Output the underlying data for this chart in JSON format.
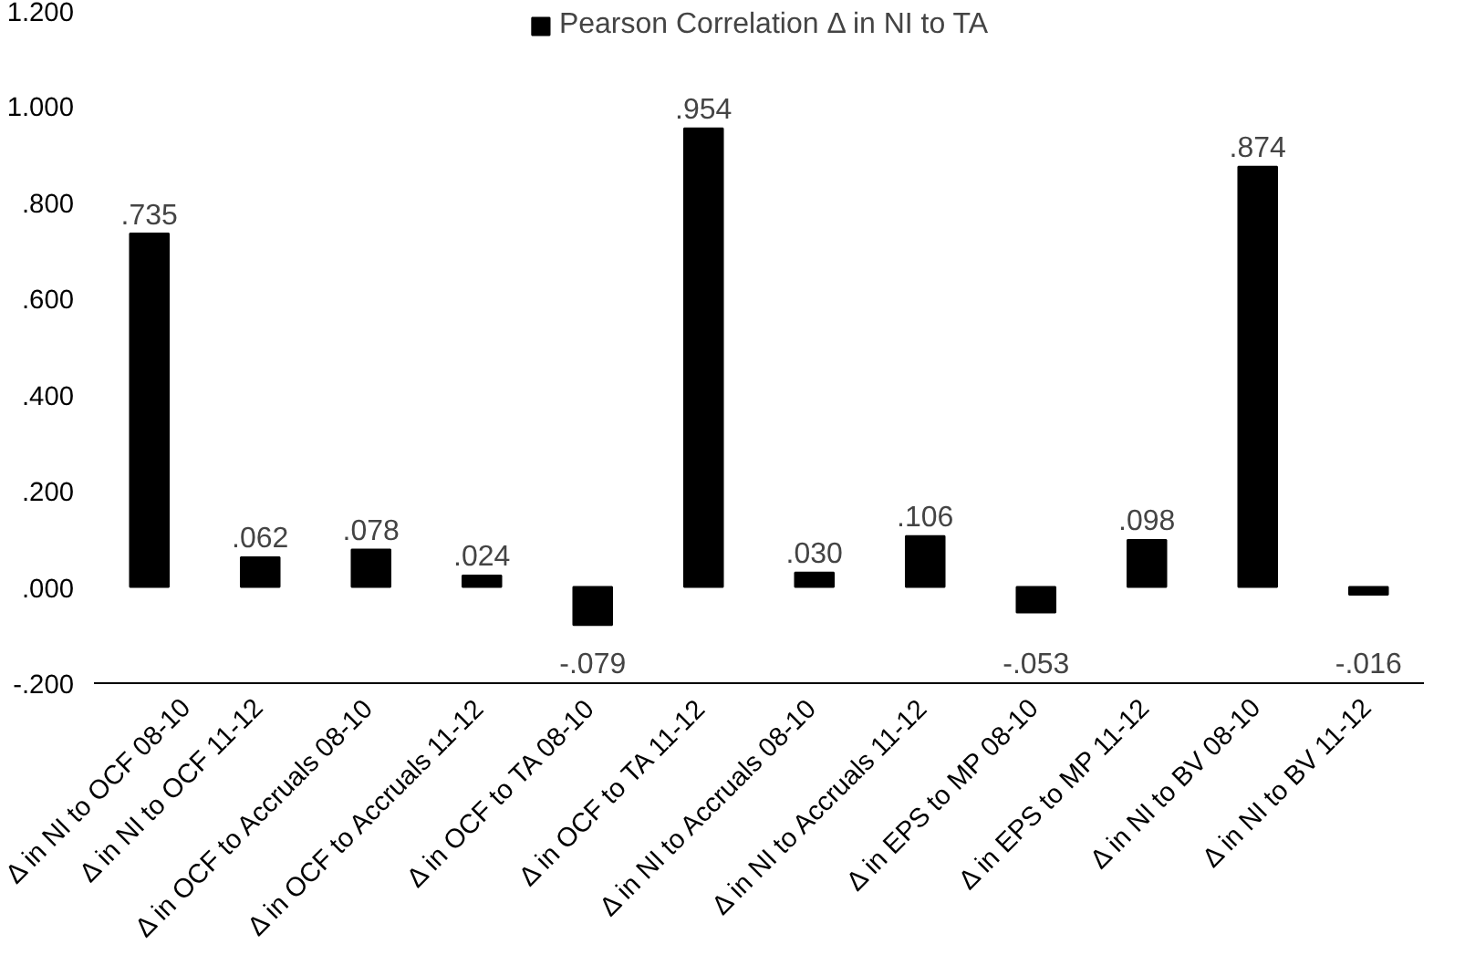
{
  "chart_data": {
    "type": "bar",
    "categories": [
      "Δ in NI to OCF 08-10",
      "Δ in NI to OCF 11-12",
      "Δ in OCF to Accruals 08-10",
      "Δ in OCF to Accruals 11-12",
      "Δ in OCF to TA 08-10",
      "Δ in OCF to TA 11-12",
      "Δ in NI to Accruals 08-10",
      "Δ in NI to Accruals 11-12",
      "Δ in EPS to MP 08-10",
      "Δ in EPS to MP 11-12",
      "Δ in NI to BV 08-10",
      "Δ in NI to BV 11-12"
    ],
    "series": [
      {
        "name": "Pearson Correlation Δ in NI to TA",
        "color": "#000000",
        "values": [
          0.735,
          0.062,
          0.078,
          0.024,
          -0.079,
          0.954,
          0.03,
          0.106,
          -0.053,
          0.098,
          0.874,
          -0.016
        ],
        "value_labels": [
          ".735",
          ".062",
          ".078",
          ".024",
          "-.079",
          ".954",
          ".030",
          ".106",
          "-.053",
          ".098",
          ".874",
          "-.016"
        ]
      }
    ],
    "ylim": [
      -0.2,
      1.2
    ],
    "yticks": [
      {
        "value": -0.2,
        "label": "-.200"
      },
      {
        "value": 0,
        "label": ".000"
      },
      {
        "value": 0.2,
        "label": ".200"
      },
      {
        "value": 0.4,
        "label": ".400"
      },
      {
        "value": 0.6,
        "label": ".600"
      },
      {
        "value": 0.8,
        "label": ".800"
      },
      {
        "value": 1.0,
        "label": "1.000"
      },
      {
        "value": 1.2,
        "label": "1.200"
      }
    ],
    "legend": "top",
    "grid": false
  }
}
